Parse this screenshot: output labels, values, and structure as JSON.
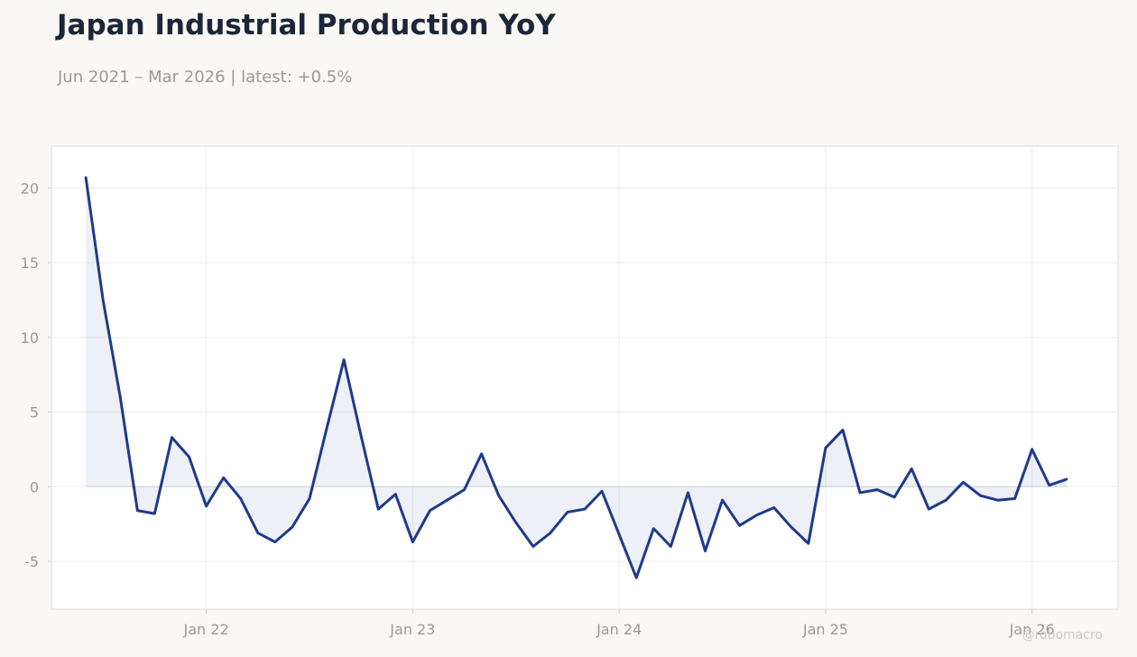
{
  "header": {
    "title": "Japan Industrial Production YoY",
    "subtitle": "Jun 2021 – Mar 2026 | latest: +0.5%"
  },
  "watermark": "@robomacro",
  "colors": {
    "line": "#1f3a8a",
    "area": "#1f3a8a",
    "background": "#f9f8f5",
    "plot": "#ffffff",
    "grid": "#eeeeee",
    "border": "#dddddd",
    "text": "#9a9a96"
  },
  "chart_data": {
    "type": "area",
    "title": "Japan Industrial Production YoY",
    "grid": true,
    "legend": "none",
    "xlim": [
      "2021-04",
      "2026-06"
    ],
    "ylim": [
      -8.2,
      22.8
    ],
    "y_ticks": [
      -5,
      0,
      5,
      10,
      15,
      20
    ],
    "x_ticks": [
      {
        "date": "2022-01",
        "label": "Jan 22"
      },
      {
        "date": "2023-01",
        "label": "Jan 23"
      },
      {
        "date": "2024-01",
        "label": "Jan 24"
      },
      {
        "date": "2025-01",
        "label": "Jan 25"
      },
      {
        "date": "2026-01",
        "label": "Jan 26"
      }
    ],
    "series": [
      {
        "x": [
          "2021-06",
          "2021-07",
          "2021-08",
          "2021-09",
          "2021-10",
          "2021-11",
          "2021-12",
          "2022-01",
          "2022-02",
          "2022-03",
          "2022-04",
          "2022-05",
          "2022-06",
          "2022-07",
          "2022-08",
          "2022-09",
          "2022-10",
          "2022-11",
          "2022-12",
          "2023-01",
          "2023-02",
          "2023-03",
          "2023-04",
          "2023-05",
          "2023-06",
          "2023-07",
          "2023-08",
          "2023-09",
          "2023-10",
          "2023-11",
          "2023-12",
          "2024-01",
          "2024-02",
          "2024-03",
          "2024-04",
          "2024-05",
          "2024-06",
          "2024-07",
          "2024-08",
          "2024-09",
          "2024-10",
          "2024-11",
          "2024-12",
          "2025-01",
          "2025-02",
          "2025-03",
          "2025-04",
          "2025-05",
          "2025-06",
          "2025-07",
          "2025-08",
          "2025-09",
          "2025-10",
          "2025-11",
          "2025-12",
          "2026-01",
          "2026-02",
          "2026-03"
        ],
        "values": [
          20.7,
          12.5,
          6.0,
          -1.6,
          -1.8,
          3.3,
          2.0,
          -1.3,
          0.6,
          -0.8,
          -3.1,
          -3.7,
          -2.7,
          -0.8,
          3.9,
          8.5,
          3.4,
          -1.5,
          -0.5,
          -3.7,
          -1.6,
          -0.9,
          -0.2,
          2.2,
          -0.6,
          -2.4,
          -4.0,
          -3.1,
          -1.7,
          -1.5,
          -0.3,
          -3.2,
          -6.1,
          -2.8,
          -4.0,
          -0.4,
          -4.3,
          -0.9,
          -2.6,
          -1.9,
          -1.4,
          -2.7,
          -3.8,
          2.6,
          3.8,
          -0.4,
          -0.2,
          -0.7,
          1.2,
          -1.5,
          -0.9,
          0.3,
          -0.6,
          -0.9,
          -0.8,
          2.5,
          0.1,
          0.5
        ]
      }
    ]
  }
}
